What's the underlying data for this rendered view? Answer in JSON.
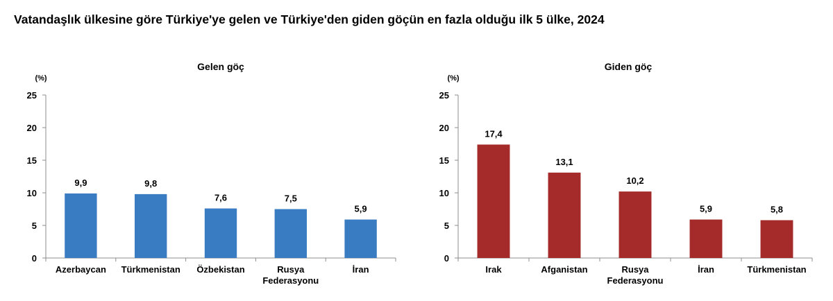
{
  "page": {
    "title": "Vatandaşlık ülkesine göre Türkiye'ye gelen ve Türkiye'den giden göçün en fazla olduğu ilk 5 ülke, 2024"
  },
  "chart_data": [
    {
      "type": "bar",
      "title": "Gelen göç",
      "ylabel": "(%)",
      "xlabel": "",
      "categories": [
        "Azerbaycan",
        "Türkmenistan",
        "Özbekistan",
        "Rusya Federasyonu",
        "İran"
      ],
      "category_lines": [
        [
          "Azerbaycan"
        ],
        [
          "Türkmenistan"
        ],
        [
          "Özbekistan"
        ],
        [
          "Rusya",
          "Federasyonu"
        ],
        [
          "İran"
        ]
      ],
      "values": [
        9.9,
        9.8,
        7.6,
        7.5,
        5.9
      ],
      "value_labels": [
        "9,9",
        "9,8",
        "7,6",
        "7,5",
        "5,9"
      ],
      "ylim": [
        0,
        25
      ],
      "yticks": [
        0,
        5,
        10,
        15,
        20,
        25
      ],
      "grid": false,
      "legend": "none",
      "color": "#3a7cc2"
    },
    {
      "type": "bar",
      "title": "Giden göç",
      "ylabel": "(%)",
      "xlabel": "",
      "categories": [
        "Irak",
        "Afganistan",
        "Rusya Federasyonu",
        "İran",
        "Türkmenistan"
      ],
      "category_lines": [
        [
          "Irak"
        ],
        [
          "Afganistan"
        ],
        [
          "Rusya",
          "Federasyonu"
        ],
        [
          "İran"
        ],
        [
          "Türkmenistan"
        ]
      ],
      "values": [
        17.4,
        13.1,
        10.2,
        5.9,
        5.8
      ],
      "value_labels": [
        "17,4",
        "13,1",
        "10,2",
        "5,9",
        "5,8"
      ],
      "ylim": [
        0,
        25
      ],
      "yticks": [
        0,
        5,
        10,
        15,
        20,
        25
      ],
      "grid": false,
      "legend": "none",
      "color": "#a52a2a"
    }
  ]
}
